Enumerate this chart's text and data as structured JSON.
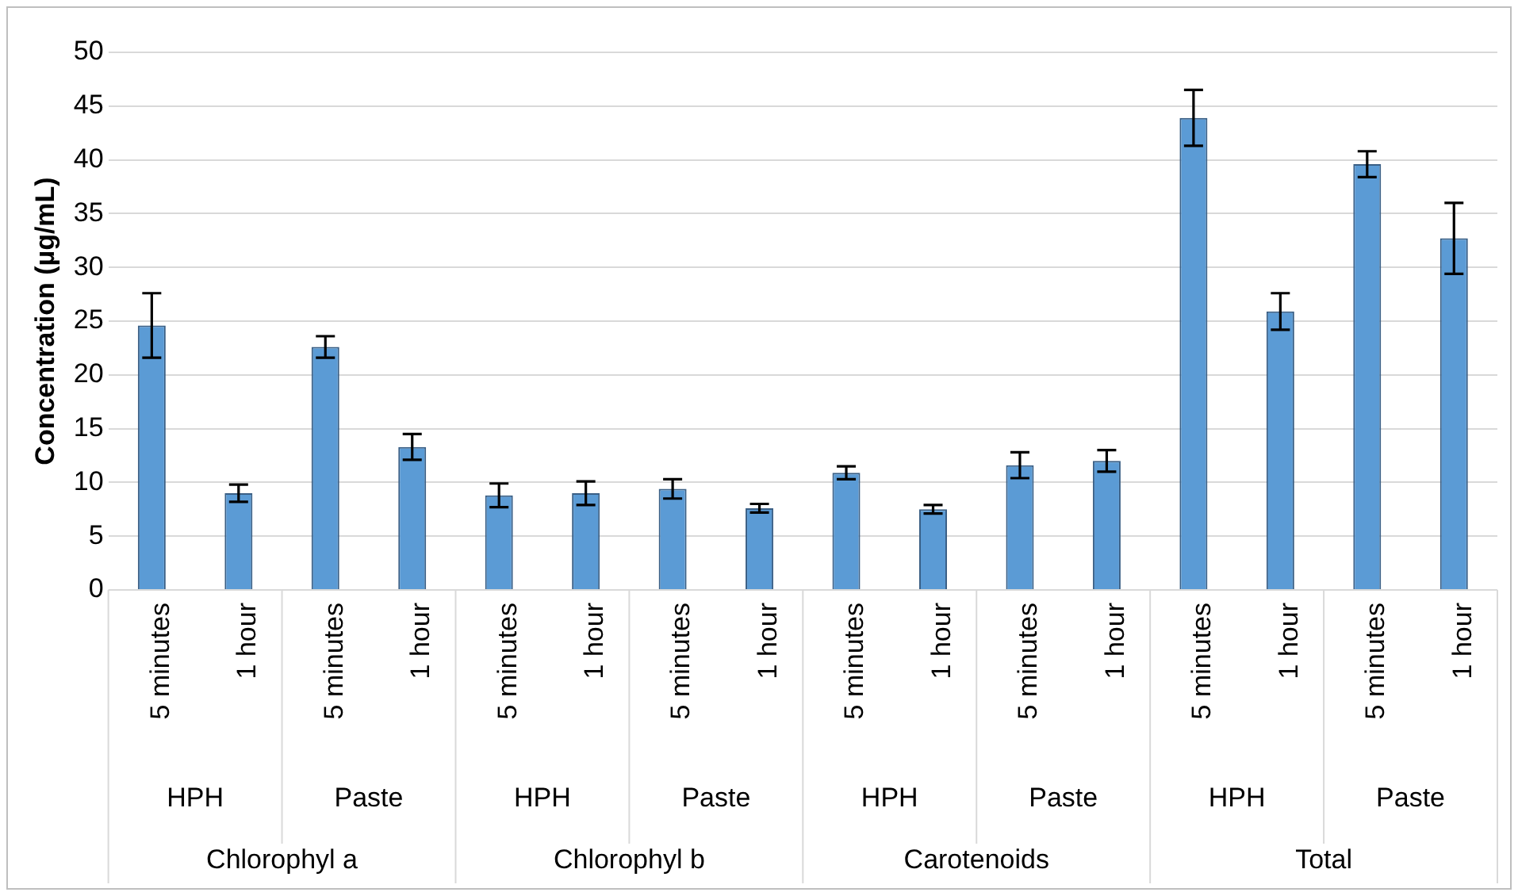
{
  "chart_data": {
    "type": "bar",
    "ylabel": "Concentration (µg/mL)",
    "categories": [
      "5 minutes",
      "1 hour",
      "5 minutes",
      "1 hour",
      "5 minutes",
      "1 hour",
      "5 minutes",
      "1 hour",
      "5 minutes",
      "1 hour",
      "5 minutes",
      "1 hour",
      "5 minutes",
      "1 hour",
      "5 minutes",
      "1 hour"
    ],
    "values": [
      24.6,
      9.0,
      22.6,
      13.3,
      8.8,
      9.0,
      9.4,
      7.6,
      10.9,
      7.5,
      11.6,
      12.0,
      43.9,
      25.9,
      39.6,
      32.7
    ],
    "errors": [
      3.0,
      0.8,
      1.0,
      1.2,
      1.1,
      1.1,
      0.9,
      0.4,
      0.6,
      0.4,
      1.2,
      1.0,
      2.6,
      1.7,
      1.2,
      3.3
    ],
    "color": "#5b9bd5",
    "annotations": [
      "HPH",
      "Paste",
      "HPH",
      "Paste",
      "HPH",
      "Paste",
      "HPH",
      "Paste",
      "Chlorophyl a",
      "Chlorophyl b",
      "Carotenoids",
      "Total"
    ],
    "ylim": [
      0,
      50
    ],
    "yticks": [
      0,
      5,
      10,
      15,
      20,
      25,
      30,
      35,
      40,
      45,
      50
    ],
    "grid": "y",
    "legend": false
  }
}
